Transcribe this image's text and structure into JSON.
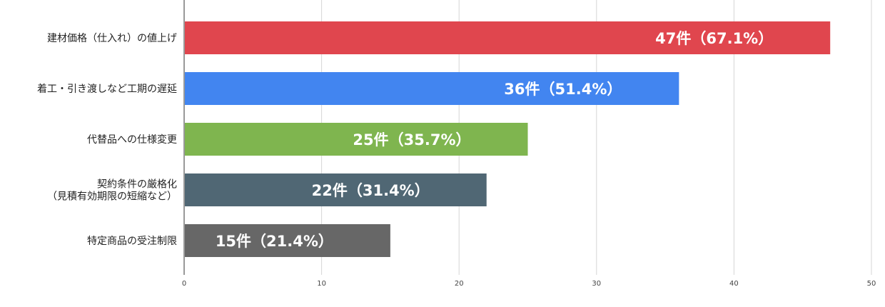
{
  "chart_data": {
    "type": "bar",
    "orientation": "horizontal",
    "categories": [
      [
        "建材価格（仕入れ）の値上げ"
      ],
      [
        "着工・引き渡しなど工期の遅延"
      ],
      [
        "代替品への仕様変更"
      ],
      [
        "契約条件の厳格化",
        "（見積有効期限の短縮など）"
      ],
      [
        "特定商品の受注制限"
      ]
    ],
    "values": [
      47,
      36,
      25,
      22,
      15
    ],
    "data_labels": [
      "47件（67.1%）",
      "36件（51.4%）",
      "25件（35.7%）",
      "22件（31.4%）",
      "15件（21.4%）"
    ],
    "colors": [
      "#e0464e",
      "#4285f0",
      "#7fb54f",
      "#506774",
      "#676767"
    ],
    "xlim": [
      0,
      50
    ],
    "xticks": [
      "0",
      "10",
      "20",
      "30",
      "40",
      "50"
    ],
    "xtick_values": [
      0,
      10,
      20,
      30,
      40,
      50
    ],
    "grid": true,
    "title": "",
    "xlabel": "",
    "ylabel": ""
  }
}
